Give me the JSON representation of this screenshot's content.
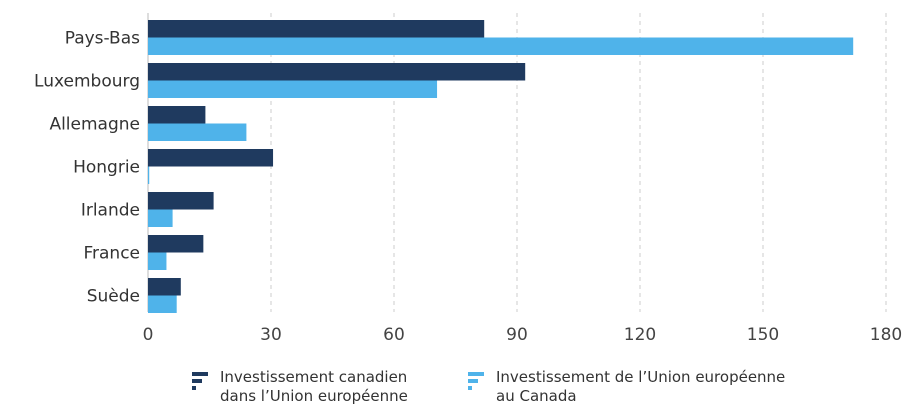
{
  "chart_data": {
    "type": "bar",
    "orientation": "horizontal",
    "categories": [
      "Pays-Bas",
      "Luxembourg",
      "Allemagne",
      "Hongrie",
      "Irlande",
      "France",
      "Suède"
    ],
    "series": [
      {
        "name": "Investissement canadien dans l'Union européenne",
        "legend_lines": [
          "Investissement canadien",
          "dans l’Union européenne"
        ],
        "color": "#1f3a5f",
        "values": [
          82,
          92,
          14,
          30.5,
          16,
          13.5,
          8
        ]
      },
      {
        "name": "Investissement de l'Union européenne au Canada",
        "legend_lines": [
          "Investissement de l’Union européenne",
          "au Canada"
        ],
        "color": "#4fb3ea",
        "values": [
          172,
          70.5,
          24,
          0.3,
          6,
          4.5,
          7
        ]
      }
    ],
    "xlim": [
      0,
      180
    ],
    "xticks": [
      "0",
      "30",
      "60",
      "90",
      "120",
      "150",
      "180"
    ],
    "xtick_values": [
      0,
      30,
      60,
      90,
      120,
      150,
      180
    ],
    "grid": true,
    "legend_position": "bottom",
    "title": "",
    "xlabel": "",
    "ylabel": ""
  }
}
